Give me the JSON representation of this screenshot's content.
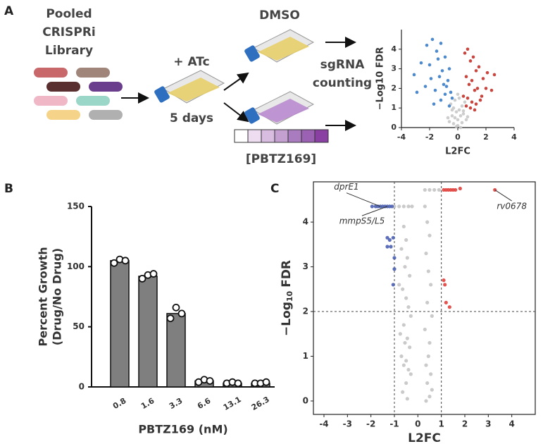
{
  "panels": [
    "A",
    "B",
    "C"
  ],
  "diagram": {
    "library": [
      "Pooled",
      "CRISPRi",
      "Library"
    ],
    "treatment": "+ ATc",
    "duration": "5 days",
    "control": "DMSO",
    "readout": [
      "sgRNA",
      "counting"
    ],
    "drug": "[PBTZ169]"
  },
  "chart_data": [
    {
      "type": "scatter",
      "xlabel": "L2FC",
      "ylabel": "−Log10 FDR",
      "xlim": [
        -4,
        4
      ],
      "ylim": [
        0,
        5
      ],
      "xticks": [
        -4,
        -2,
        0,
        2,
        4
      ],
      "yticks": [
        0,
        1,
        2,
        3,
        4
      ],
      "series": [
        {
          "color": "#c8c8c8",
          "x": [
            -0.5,
            -0.3,
            -0.1,
            0.1,
            0.3,
            0.5,
            -0.4,
            -0.2,
            0,
            0.2,
            0.4,
            -0.6,
            -0.3,
            0,
            0.3,
            0.6,
            -0.2,
            0.1,
            0.2,
            -0.1,
            0.0,
            -0.4,
            0.4,
            -0.7,
            0.7
          ],
          "values": [
            1.2,
            1.0,
            0.8,
            0.9,
            1.1,
            1.3,
            0.6,
            0.5,
            0.4,
            0.6,
            0.7,
            0.3,
            0.2,
            0.1,
            0.25,
            0.4,
            1.4,
            1.5,
            0.0,
            0.05,
            1.7,
            0.9,
            0.85,
            0.5,
            0.55
          ]
        },
        {
          "color": "#3b7dc4",
          "x": [
            -3.1,
            -2.6,
            -2.2,
            -1.8,
            -1.5,
            -1.2,
            -0.9,
            -0.6,
            -2.9,
            -2.3,
            -1.9,
            -1.6,
            -1.3,
            -1.0,
            -0.7,
            -0.5,
            -2.0,
            -1.4,
            -1.1,
            -0.8,
            -0.4,
            -1.7,
            -1.2,
            -0.6,
            -0.9
          ],
          "values": [
            2.7,
            3.3,
            4.2,
            4.5,
            3.9,
            4.3,
            3.6,
            3.0,
            1.8,
            2.1,
            2.5,
            1.9,
            2.6,
            2.2,
            2.4,
            1.8,
            3.2,
            3.5,
            2.9,
            2.1,
            1.5,
            1.2,
            1.4,
            1.1,
            1.7
          ]
        },
        {
          "color": "#c0322b",
          "x": [
            0.5,
            0.7,
            0.9,
            1.1,
            1.3,
            1.5,
            1.8,
            2.1,
            2.6,
            0.6,
            0.8,
            1.0,
            1.2,
            1.4,
            1.7,
            2.0,
            2.4,
            0.4,
            0.7,
            1.0,
            1.3,
            1.6,
            0.9,
            1.2,
            0.6
          ],
          "values": [
            3.8,
            4.0,
            3.4,
            3.6,
            2.9,
            3.1,
            2.5,
            2.8,
            2.7,
            2.6,
            2.2,
            2.4,
            1.9,
            2.0,
            1.6,
            2.0,
            1.9,
            1.6,
            1.5,
            1.3,
            1.2,
            1.4,
            1.0,
            0.9,
            1.1
          ]
        }
      ]
    },
    {
      "type": "bar",
      "xlabel": "PBTZ169 (nM)",
      "ylabel": [
        "Percent Growth",
        "(Drug/No Drug)"
      ],
      "categories": [
        "0.8",
        "1.6",
        "3.3",
        "6.6",
        "13.1",
        "26.3"
      ],
      "values": [
        105,
        92,
        61,
        5,
        3,
        3
      ],
      "color": "#7f7f7f",
      "replicates": [
        [
          103,
          106,
          105
        ],
        [
          90,
          93,
          94
        ],
        [
          57,
          66,
          61
        ],
        [
          4,
          6,
          5
        ],
        [
          3,
          4,
          3
        ],
        [
          3,
          3,
          4
        ]
      ],
      "ylim": [
        0,
        150
      ],
      "yticks": [
        0,
        50,
        100,
        150
      ]
    },
    {
      "type": "scatter",
      "xlabel": "L2FC",
      "ylabel": [
        "−Log",
        "10",
        "FDR"
      ],
      "xlim": [
        -4.45,
        5
      ],
      "ylim": [
        -0.3,
        4.9
      ],
      "xticks": [
        -4,
        -3,
        -2,
        -1,
        0,
        1,
        2,
        3,
        4
      ],
      "yticks": [
        0,
        1,
        2,
        3,
        4
      ],
      "thresholds": {
        "x": [
          -1,
          1
        ],
        "y": 2
      },
      "frame": true,
      "series": [
        {
          "color": "#c4c4c4",
          "x": [
            -1.0,
            -0.8,
            -0.6,
            -0.4,
            -0.25,
            0.3,
            0.5,
            0.7,
            0.9,
            -0.6,
            -0.5,
            -0.7,
            -0.45,
            -0.55,
            -0.35,
            -0.8,
            -0.65,
            -0.5,
            -0.4,
            -0.3,
            -0.6,
            -0.75,
            -0.45,
            -0.55,
            -0.35,
            -0.7,
            -0.5,
            -0.6,
            -0.4,
            -0.3,
            -0.5,
            -0.65,
            -0.45,
            0.3,
            0.4,
            0.5,
            0.35,
            0.45,
            0.55,
            0.4,
            0.6,
            0.3,
            0.5,
            0.45,
            0.35,
            0.55,
            0.4,
            0.6,
            0.5,
            0.35
          ],
          "values": [
            4.35,
            4.35,
            4.35,
            4.35,
            4.35,
            4.72,
            4.72,
            4.72,
            4.72,
            3.9,
            3.6,
            3.4,
            3.2,
            3.0,
            2.8,
            2.6,
            2.5,
            2.3,
            2.1,
            1.9,
            1.7,
            1.5,
            1.4,
            1.3,
            1.2,
            1.0,
            0.9,
            0.8,
            0.7,
            0.6,
            0.4,
            0.2,
            0.05,
            4.35,
            4.0,
            3.7,
            3.3,
            2.9,
            2.6,
            2.2,
            1.9,
            1.6,
            1.3,
            1.0,
            0.8,
            0.6,
            0.4,
            0.25,
            0.1,
            0.0
          ]
        },
        {
          "color": "#4a5fb0",
          "x": [
            -1.95,
            -1.8,
            -1.7,
            -1.6,
            -1.5,
            -1.4,
            -1.3,
            -1.2,
            -1.1,
            -1.3,
            -1.2,
            -1.05,
            -1.3,
            -1.15,
            -1.0,
            -1.0,
            -1.05
          ],
          "values": [
            4.35,
            4.35,
            4.35,
            4.35,
            4.35,
            4.35,
            4.35,
            4.35,
            4.35,
            3.65,
            3.6,
            3.65,
            3.45,
            3.45,
            3.2,
            2.95,
            2.6
          ]
        },
        {
          "color": "#e0403c",
          "x": [
            1.1,
            1.2,
            1.3,
            1.4,
            1.5,
            1.6,
            1.8,
            3.28,
            1.1,
            1.15,
            1.2,
            1.35
          ],
          "values": [
            4.72,
            4.72,
            4.72,
            4.72,
            4.72,
            4.72,
            4.75,
            4.72,
            2.7,
            2.6,
            2.2,
            2.1
          ]
        }
      ],
      "annotations": [
        {
          "text": "dprE1",
          "x": -1.6,
          "y": 4.35
        },
        {
          "text": "mmpS5/L5",
          "x": -1.3,
          "y": 4.35
        },
        {
          "text": "rv0678",
          "x": 3.28,
          "y": 4.72
        }
      ]
    }
  ]
}
